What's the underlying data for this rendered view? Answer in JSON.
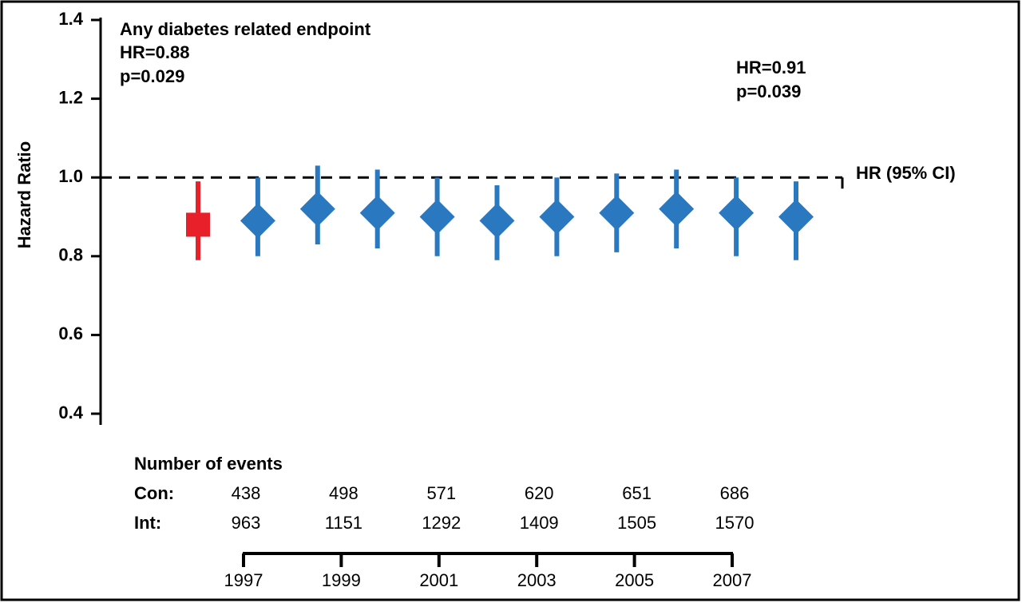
{
  "chart_data": {
    "type": "forest",
    "title": "Any diabetes related endpoint",
    "annotations": [
      "HR=0.88",
      "p=0.029",
      "HR=0.91",
      "p=0.039"
    ],
    "ylabel": "Hazard Ratio",
    "ylim": [
      0.4,
      1.4
    ],
    "yticks": [
      0.4,
      0.6,
      0.8,
      {
        "value": 1,
        "label": "1.0"
      },
      1.2,
      1.4
    ],
    "ref_line": 1,
    "ref_label": "HR (95% CI)",
    "series": [
      {
        "color": "#e8202a",
        "marker": "square",
        "values": [
          0.88
        ],
        "lower": [
          0.79
        ],
        "upper": [
          0.99
        ]
      },
      {
        "color": "#2a78c0",
        "marker": "diamond",
        "values": [
          0.89,
          0.92,
          0.91,
          0.9,
          0.89,
          0.9,
          0.91,
          0.92,
          0.91,
          0.9
        ],
        "lower": [
          0.8,
          0.83,
          0.82,
          0.8,
          0.79,
          0.8,
          0.81,
          0.82,
          0.8,
          0.79
        ],
        "upper": [
          1.0,
          1.03,
          1.02,
          1.0,
          0.98,
          1.0,
          1.01,
          1.02,
          1.0,
          0.99
        ]
      }
    ],
    "events": {
      "title": "Number of events",
      "rows": [
        {
          "label": "Con:",
          "values": [
            438,
            498,
            571,
            620,
            651,
            686
          ]
        },
        {
          "label": "Int:",
          "values": [
            963,
            1151,
            1292,
            1409,
            1505,
            1570
          ]
        }
      ]
    },
    "xlim": [
      1997,
      2007
    ],
    "xticks": [
      1997,
      1999,
      2001,
      2003,
      2005,
      2007
    ]
  }
}
